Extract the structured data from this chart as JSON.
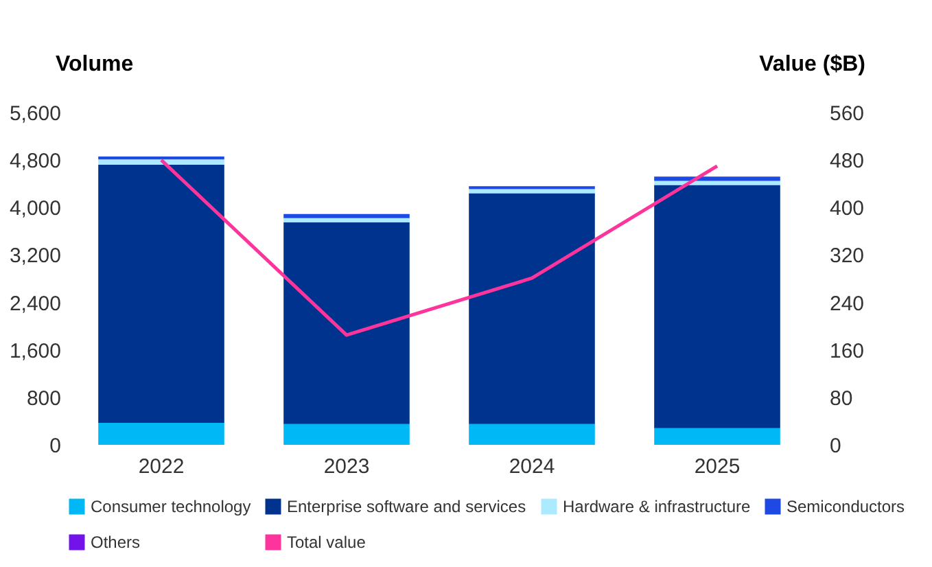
{
  "chart_data": {
    "type": "bar",
    "stacked": true,
    "categories": [
      "2022",
      "2023",
      "2024",
      "2025"
    ],
    "ylabel": "Volume",
    "y2label": "Value ($B)",
    "ylim": [
      0,
      5600
    ],
    "yticks": [
      0,
      {
        "value": 800,
        "label": "800"
      },
      {
        "value": 1600,
        "label": "1,600"
      },
      {
        "value": 2400,
        "label": "2,400"
      },
      {
        "value": 3200,
        "label": "3,200"
      },
      {
        "value": 4000,
        "label": "4,000"
      },
      {
        "value": 4800,
        "label": "4,800"
      },
      {
        "value": 5600,
        "label": "5,600"
      }
    ],
    "y2lim": [
      0,
      560
    ],
    "y2ticks": [
      0,
      80,
      160,
      240,
      320,
      400,
      480,
      560
    ],
    "legend": "bottom",
    "grid": false,
    "series": [
      {
        "name": "Consumer technology",
        "color": "#00b8f5",
        "values": [
          370,
          350,
          350,
          280
        ]
      },
      {
        "name": "Enterprise software and services",
        "color": "#00338d",
        "values": [
          4350,
          3400,
          3890,
          4100
        ]
      },
      {
        "name": "Hardware & infrastructure",
        "color": "#acEAFF",
        "values": [
          90,
          70,
          70,
          70
        ]
      },
      {
        "name": "Semiconductors",
        "color": "#1e49e2",
        "values": [
          50,
          70,
          50,
          70
        ]
      },
      {
        "name": "Others",
        "color": "#7213ea",
        "values": [
          null,
          null,
          null,
          null
        ]
      },
      {
        "name": "Total value",
        "color": "#fd349c",
        "type": "line",
        "axis": "y2",
        "values": [
          480,
          185,
          281,
          470
        ]
      }
    ]
  }
}
